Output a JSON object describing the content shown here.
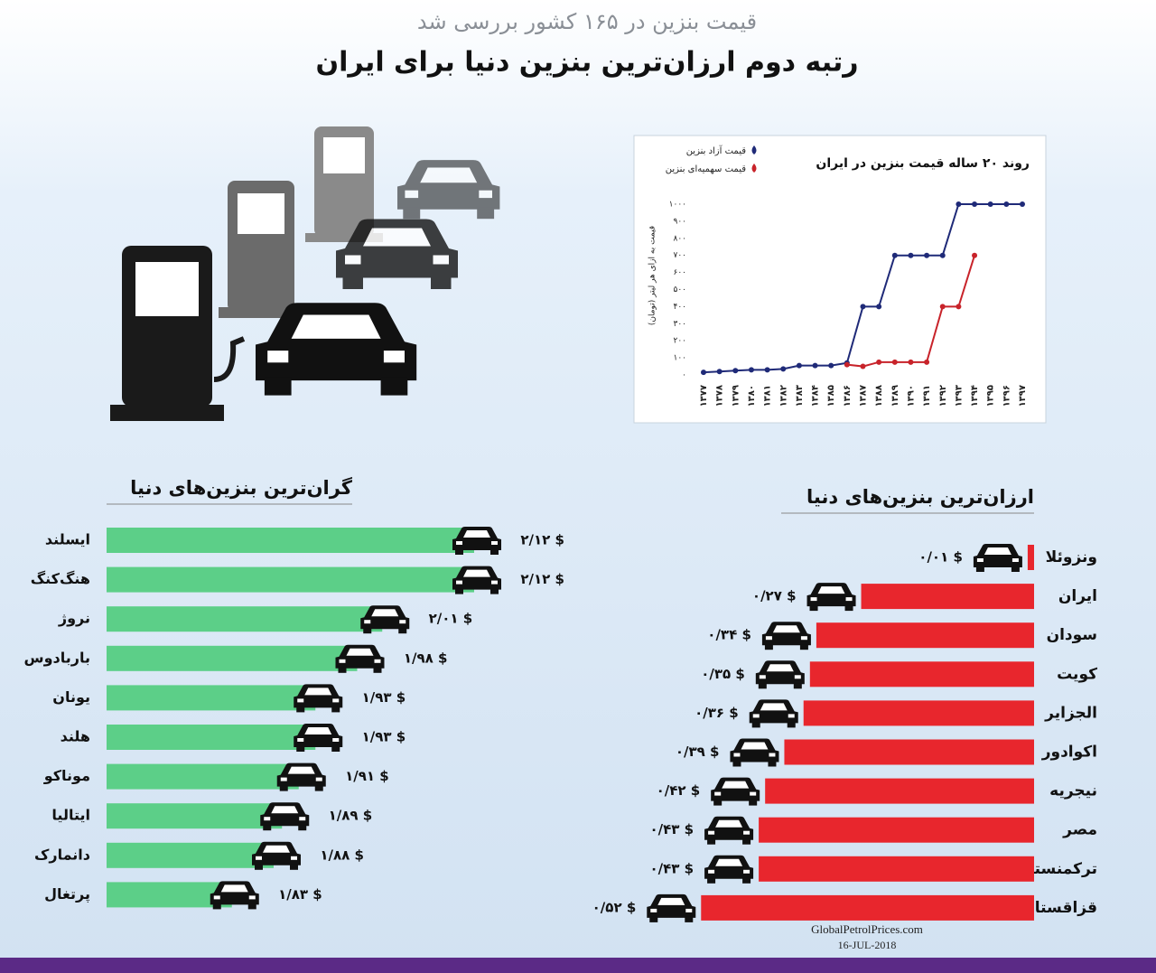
{
  "header": {
    "subtitle": "قیمت بنزین در ۱۶۵ کشور بررسی شد",
    "title": "رتبه دوم ارزان‌ترین بنزین دنیا برای ایران"
  },
  "chart_data": [
    {
      "type": "line",
      "title": "روند ۲۰ ساله قیمت بنزین در ایران",
      "y_label": "قیمت به ازای هر لیتر (تومان)",
      "categories": [
        "۱۳۷۷",
        "۱۳۷۸",
        "۱۳۷۹",
        "۱۳۸۰",
        "۱۳۸۱",
        "۱۳۸۲",
        "۱۳۸۳",
        "۱۳۸۴",
        "۱۳۸۵",
        "۱۳۸۶",
        "۱۳۸۷",
        "۱۳۸۸",
        "۱۳۸۹",
        "۱۳۹۰",
        "۱۳۹۱",
        "۱۳۹۲",
        "۱۳۹۳",
        "۱۳۹۴",
        "۱۳۹۵",
        "۱۳۹۶",
        "۱۳۹۷"
      ],
      "series": [
        {
          "name": "قیمت آزاد بنزین",
          "color": "#1f2a78",
          "values": [
            15,
            20,
            25,
            30,
            30,
            35,
            55,
            55,
            55,
            70,
            400,
            400,
            700,
            700,
            700,
            700,
            1000,
            1000,
            1000,
            1000,
            1000
          ]
        },
        {
          "name": "قیمت سهمیه‌ای بنزین",
          "color": "#c8232a",
          "values": [
            null,
            null,
            null,
            null,
            null,
            null,
            null,
            null,
            null,
            60,
            50,
            75,
            75,
            75,
            75,
            400,
            400,
            700,
            null,
            null,
            null
          ]
        }
      ],
      "ylim": [
        0,
        1000
      ],
      "yticks": [
        {
          "value": 0,
          "label": "۰"
        },
        {
          "value": 100,
          "label": "۱۰۰"
        },
        {
          "value": 200,
          "label": "۲۰۰"
        },
        {
          "value": 300,
          "label": "۳۰۰"
        },
        {
          "value": 400,
          "label": "۴۰۰"
        },
        {
          "value": 500,
          "label": "۵۰۰"
        },
        {
          "value": 600,
          "label": "۶۰۰"
        },
        {
          "value": 700,
          "label": "۷۰۰"
        },
        {
          "value": 800,
          "label": "۸۰۰"
        },
        {
          "value": 900,
          "label": "۹۰۰"
        },
        {
          "value": 1000,
          "label": "۱۰۰۰"
        }
      ]
    },
    {
      "type": "hbar",
      "title": "گران‌ترین بنزین‌های دنیا",
      "color": "#5ccf88",
      "categories": [
        "ایسلند",
        "هنگ‌کنگ",
        "نروژ",
        "باربادوس",
        "یونان",
        "هلند",
        "موناکو",
        "ایتالیا",
        "دانمارک",
        "پرتغال"
      ],
      "values": [
        2.12,
        2.12,
        2.01,
        1.98,
        1.93,
        1.93,
        1.91,
        1.89,
        1.88,
        1.83
      ],
      "value_labels": [
        "۲/۱۲ $",
        "۲/۱۲ $",
        "۲/۰۱ $",
        "۱/۹۸ $",
        "۱/۹۳ $",
        "۱/۹۳ $",
        "۱/۹۱ $",
        "۱/۸۹ $",
        "۱/۸۸ $",
        "۱/۸۳ $"
      ],
      "xlim": [
        1.68,
        2.2
      ]
    },
    {
      "type": "hbar-rtl",
      "title": "ارزان‌ترین بنزین‌های دنیا",
      "color": "#e8262d",
      "categories": [
        "ونزوئلا",
        "ایران",
        "سودان",
        "کویت",
        "الجزایر",
        "اکوادور",
        "نیجریه",
        "مصر",
        "ترکمنستان",
        "قزاقستان"
      ],
      "values": [
        0.01,
        0.27,
        0.34,
        0.35,
        0.36,
        0.39,
        0.42,
        0.43,
        0.43,
        0.52
      ],
      "value_labels": [
        "۰/۰۱ $",
        "۰/۲۷ $",
        "۰/۳۴ $",
        "۰/۳۵ $",
        "۰/۳۶ $",
        "۰/۳۹ $",
        "۰/۴۲ $",
        "۰/۴۳ $",
        "۰/۴۳ $",
        "۰/۵۲ $"
      ],
      "xlim": [
        0,
        0.55
      ]
    }
  ],
  "source": {
    "site": "GlobalPetrolPrices.com",
    "date": "16-JUL-2018"
  }
}
